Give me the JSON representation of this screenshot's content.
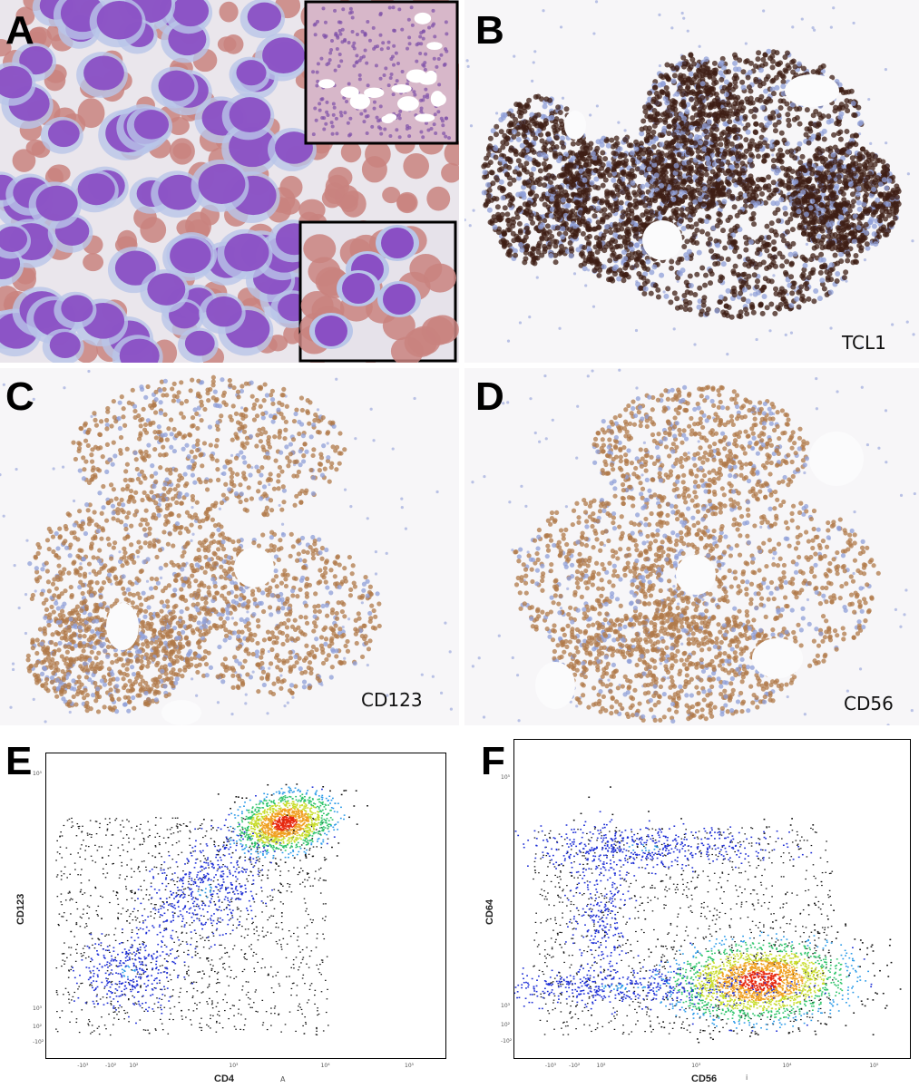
{
  "panels": {
    "A": {
      "letter": "A"
    },
    "B": {
      "letter": "B",
      "stain": "TCL1"
    },
    "C": {
      "letter": "C",
      "stain": "CD123"
    },
    "D": {
      "letter": "D",
      "stain": "CD56"
    },
    "E": {
      "letter": "E",
      "xlabel": "CD4",
      "ylabel": "CD123",
      "marker": "A"
    },
    "F": {
      "letter": "F",
      "xlabel": "CD56",
      "ylabel": "CD64",
      "marker": "i"
    }
  },
  "ticks": {
    "x": [
      "-10³",
      "-10²",
      "10²",
      "10³",
      "10⁴",
      "10⁵"
    ],
    "y": [
      "10⁵",
      "10³",
      "10²",
      "-10²"
    ]
  },
  "colors": {
    "rbc": "#c9837f",
    "blast": "#8a4fc4",
    "tcl1": "#3e1e14",
    "ihc_brown": "#b07a4a",
    "hematoxylin": "#8f9fd8",
    "density_low": "#1e2fd6",
    "density_high": "#e82a10"
  }
}
